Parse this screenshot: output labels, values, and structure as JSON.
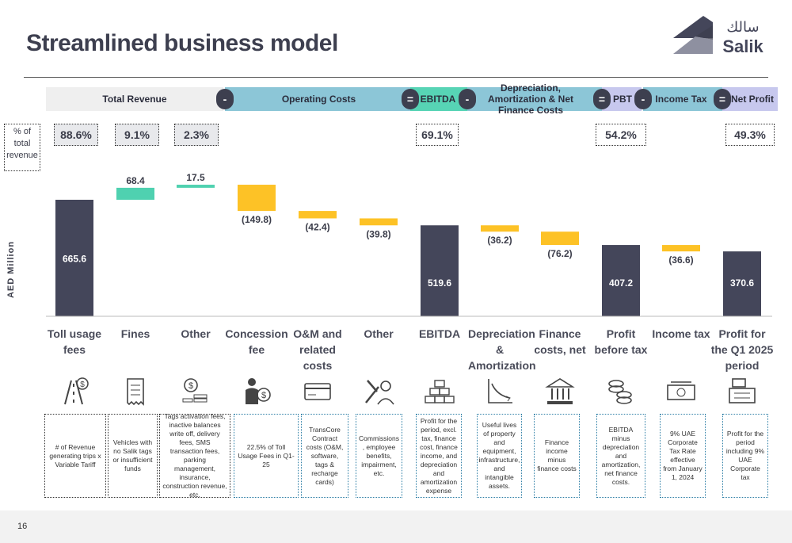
{
  "title": "Streamlined business model",
  "logo": {
    "arabic": "سالك",
    "latin": "Salik"
  },
  "header": {
    "total_revenue": "Total Revenue",
    "operating_costs": "Operating Costs",
    "ebitda": "EBITDA",
    "depreciation": "Depreciation, Amortization & Net Finance Costs",
    "pbt": "PBT",
    "income_tax": "Income Tax",
    "net_profit": "Net Profit",
    "minus": "-",
    "equals": "="
  },
  "percent_legend": "% of total revenue",
  "percents": {
    "toll": "88.6%",
    "fines": "9.1%",
    "other": "2.3%",
    "ebitda": "69.1%",
    "pbt": "54.2%",
    "net": "49.3%"
  },
  "colors": {
    "total": "#44465a",
    "increase": "#4fd1b0",
    "decrease": "#fdc226",
    "band_teal": "#8cc6d7",
    "band_gray": "#efefef",
    "band_purple": "#c7c8ee",
    "band_green": "#57d4b5"
  },
  "chart_data": {
    "type": "bar",
    "subtype": "waterfall",
    "ylabel": "AED Million",
    "categories": [
      "Toll usage fees",
      "Fines",
      "Other",
      "Concession fee",
      "O&M and related costs",
      "Other",
      "EBITDA",
      "Depreciation & Amortization",
      "Finance costs, net",
      "Profit before tax",
      "Income tax",
      "Profit for the Q1 2025 period"
    ],
    "values": [
      665.6,
      68.4,
      17.5,
      -149.8,
      -42.4,
      -39.8,
      519.6,
      -36.2,
      -76.2,
      407.2,
      -36.6,
      370.6
    ],
    "kinds": [
      "total",
      "increase",
      "increase",
      "decrease",
      "decrease",
      "decrease",
      "total",
      "decrease",
      "decrease",
      "total",
      "decrease",
      "total"
    ],
    "labels": [
      "665.6",
      "68.4",
      "17.5",
      "(149.8)",
      "(42.4)",
      "(39.8)",
      "519.6",
      "(36.2)",
      "(76.2)",
      "407.2",
      "(36.6)",
      "370.6"
    ]
  },
  "icons": [
    "toll-road-icon",
    "receipt-icon",
    "coins-icon",
    "person-dollar-icon",
    "card-icon",
    "tools-person-icon",
    "gold-bars-icon",
    "declining-graph-icon",
    "bank-icon",
    "coin-stack-icon",
    "cash-icon",
    "cash-register-icon"
  ],
  "descriptions": [
    "# of Revenue generating trips x Variable Tariff",
    "Vehicles with no Salik tags or insufficient funds",
    "Tags activation fees, inactive balances write off, delivery fees, SMS transaction fees, parking management, insurance, construction revenue, etc.",
    "22.5% of Toll Usage Fees in Q1-25",
    "TransCore Contract costs (O&M, software, tags & recharge cards)",
    "Commissions , employee benefits, impairment, etc.",
    "Profit for the period, excl. tax, finance cost, finance income, and depreciation and amortization expense",
    "Useful lives of property and equipment, infrastructure, and intangible assets.",
    "Finance income minus finance costs",
    "EBITDA minus depreciation and amortization, net finance costs.",
    "9% UAE Corporate Tax Rate effective from January 1, 2024",
    "Profit for the period including 9% UAE Corporate tax"
  ],
  "page_number": "16"
}
